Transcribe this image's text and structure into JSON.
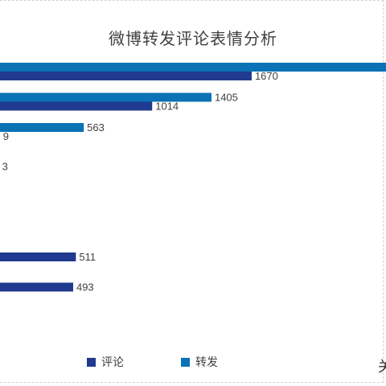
{
  "chart_data": {
    "type": "bar",
    "orientation": "horizontal",
    "title": "微博转发评论表情分析",
    "categories": [
      "",
      "",
      "",
      "",
      "",
      "",
      "",
      "",
      "",
      ""
    ],
    "series": [
      {
        "name": "评论",
        "color": "#1f3a8f",
        "values": [
          1670,
          1014,
          9,
          3,
          0,
          0,
          511,
          493,
          0,
          0
        ]
      },
      {
        "name": "转发",
        "color": "#0b72b5",
        "values": [
          3000,
          1405,
          563,
          0,
          0,
          0,
          0,
          0,
          0,
          0
        ]
      }
    ],
    "value_labels": {
      "评论": [
        "1670",
        "1014",
        "9",
        "3",
        "",
        "",
        "511",
        "493",
        "",
        ""
      ],
      "转发": [
        "",
        "1405",
        "563",
        "",
        "",
        "",
        "",
        "",
        "",
        ""
      ]
    },
    "legend_position": "bottom",
    "grid": false
  },
  "legend": {
    "comment_label": "评论",
    "repost_label": "转发"
  },
  "corner_glyph": "关"
}
